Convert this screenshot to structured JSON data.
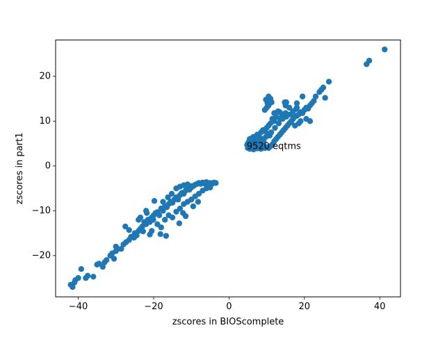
{
  "chart_data": {
    "type": "scatter",
    "title": "",
    "xlabel": "zscores in BIOScomplete",
    "ylabel": "zscores in part1",
    "xlim": [
      -46,
      45.5
    ],
    "ylim": [
      -29.2,
      28.1
    ],
    "xticks": [
      -40,
      -20,
      0,
      20,
      40
    ],
    "yticks": [
      -20,
      -10,
      0,
      10,
      20
    ],
    "xtick_labels": [
      "−40",
      "−20",
      "0",
      "20",
      "40"
    ],
    "ytick_labels": [
      "−20",
      "−10",
      "0",
      "10",
      "20"
    ],
    "grid": false,
    "legend": "none",
    "marker_color": "#1f77b4",
    "annotations": [
      {
        "text": "9520 eqtms",
        "x": 4.7,
        "y": 4.3
      }
    ],
    "series": [
      {
        "note_points": "approximate sample of visible point cloud",
        "points": [
          [
            -42,
            -26.5
          ],
          [
            -41.5,
            -27
          ],
          [
            -41,
            -26
          ],
          [
            -40.8,
            -25.5
          ],
          [
            -40,
            -25
          ],
          [
            -39.2,
            -23
          ],
          [
            -38,
            -25
          ],
          [
            -37.5,
            -24.5
          ],
          [
            -36,
            -24.7
          ],
          [
            -35,
            -22
          ],
          [
            -34.5,
            -21.8
          ],
          [
            -33.5,
            -22.5
          ],
          [
            -33,
            -21.5
          ],
          [
            -32.5,
            -21
          ],
          [
            -31.5,
            -20
          ],
          [
            -31,
            -19.5
          ],
          [
            -30.5,
            -20.7
          ],
          [
            -30,
            -19
          ],
          [
            -29.5,
            -18.5
          ],
          [
            -28.6,
            -18.5
          ],
          [
            -28,
            -17.5
          ],
          [
            -27.3,
            -17
          ],
          [
            -26.5,
            -16.5
          ],
          [
            -26,
            -15.8
          ],
          [
            -25.2,
            -16
          ],
          [
            -25,
            -15
          ],
          [
            -24.5,
            -15.5
          ],
          [
            -24,
            -14.5
          ],
          [
            -23.5,
            -14
          ],
          [
            -23,
            -13.5
          ],
          [
            -22.5,
            -12.5
          ],
          [
            -22,
            -13
          ],
          [
            -21.5,
            -12
          ],
          [
            -21,
            -12.5
          ],
          [
            -20.5,
            -11.5
          ],
          [
            -20,
            -11
          ],
          [
            -20.1,
            -12
          ],
          [
            -19.5,
            -10.5
          ],
          [
            -19,
            -10.3
          ],
          [
            -18.5,
            -11
          ],
          [
            -18,
            -9.5
          ],
          [
            -17.5,
            -10
          ],
          [
            -17,
            -9
          ],
          [
            -16.5,
            -9.2
          ],
          [
            -16,
            -8.5
          ],
          [
            -15.5,
            -8
          ],
          [
            -15,
            -8.2
          ],
          [
            -14.5,
            -7.5
          ],
          [
            -14,
            -7
          ],
          [
            -13.5,
            -7.5
          ],
          [
            -13,
            -6.5
          ],
          [
            -12.5,
            -6
          ],
          [
            -12,
            -6.2
          ],
          [
            -11.5,
            -5.5
          ],
          [
            -11,
            -5
          ],
          [
            -10.5,
            -5.3
          ],
          [
            -10,
            -4.8
          ],
          [
            -9.5,
            -4.5
          ],
          [
            -9,
            -4.2
          ],
          [
            -8.5,
            -4
          ],
          [
            -8,
            -3.8
          ],
          [
            -7.5,
            -4
          ],
          [
            -7,
            -3.7
          ],
          [
            -6.5,
            -3.9
          ],
          [
            -6,
            -3.6
          ],
          [
            -5.5,
            -4.1
          ],
          [
            -5,
            -3.8
          ],
          [
            -4.5,
            -4
          ],
          [
            -4,
            -3.7
          ],
          [
            -3.5,
            -3.8
          ],
          [
            -30,
            -18
          ],
          [
            -27.5,
            -13.5
          ],
          [
            -24,
            -12
          ],
          [
            -22.8,
            -14.6
          ],
          [
            -21.8,
            -10.5
          ],
          [
            -20.5,
            -14.5
          ],
          [
            -19,
            -13
          ],
          [
            -17,
            -12
          ],
          [
            -16,
            -11
          ],
          [
            -15,
            -11.5
          ],
          [
            -14,
            -10.2
          ],
          [
            -13,
            -9.5
          ],
          [
            -12,
            -8.5
          ],
          [
            -11,
            -8
          ],
          [
            -10,
            -7.5
          ],
          [
            -9,
            -6.8
          ],
          [
            -8,
            -6.2
          ],
          [
            -7,
            -5.5
          ],
          [
            -6,
            -5
          ],
          [
            -5,
            -4.8
          ],
          [
            -17.5,
            -8
          ],
          [
            -16.2,
            -7
          ],
          [
            -15.2,
            -6.2
          ],
          [
            -14,
            -5
          ],
          [
            -13,
            -4.6
          ],
          [
            -12,
            -4.3
          ],
          [
            -11,
            -4.1
          ],
          [
            -10,
            -4.5
          ],
          [
            -22,
            -10
          ],
          [
            -18.2,
            -15.2
          ],
          [
            -16.7,
            -15.6
          ],
          [
            -19.8,
            -7.8
          ],
          [
            -26.5,
            -14.3
          ],
          [
            -23.5,
            -11.5
          ],
          [
            -12.2,
            -10.5
          ],
          [
            -9.5,
            -9
          ],
          [
            -8.2,
            -8
          ],
          [
            -13.2,
            -12.8
          ],
          [
            -11.5,
            -11.2
          ],
          [
            -18,
            -13.7
          ],
          [
            -21,
            -15.3
          ],
          [
            5,
            4
          ],
          [
            5.5,
            3.8
          ],
          [
            6,
            4.2
          ],
          [
            6.5,
            3.7
          ],
          [
            7,
            4.1
          ],
          [
            7.5,
            3.9
          ],
          [
            8,
            4.3
          ],
          [
            8.5,
            3.8
          ],
          [
            9,
            4.5
          ],
          [
            9.5,
            4
          ],
          [
            10,
            4.2
          ],
          [
            10.5,
            4
          ],
          [
            11,
            4.4
          ],
          [
            11.5,
            4.8
          ],
          [
            12,
            5.5
          ],
          [
            12.5,
            6
          ],
          [
            13,
            6.5
          ],
          [
            13.5,
            7
          ],
          [
            14,
            7.5
          ],
          [
            14.5,
            8
          ],
          [
            15,
            8.5
          ],
          [
            15.5,
            9
          ],
          [
            16,
            9.5
          ],
          [
            16.5,
            9.8
          ],
          [
            17,
            10.5
          ],
          [
            17.5,
            11
          ],
          [
            18,
            11.2
          ],
          [
            18.5,
            11.5
          ],
          [
            19,
            12
          ],
          [
            19.5,
            11.8
          ],
          [
            20,
            12.5
          ],
          [
            20.5,
            13
          ],
          [
            21,
            12.8
          ],
          [
            21.5,
            13.5
          ],
          [
            22,
            14
          ],
          [
            5,
            5
          ],
          [
            5.5,
            6
          ],
          [
            6,
            5.5
          ],
          [
            6.5,
            6.5
          ],
          [
            7,
            5.8
          ],
          [
            7.5,
            7
          ],
          [
            8,
            6.5
          ],
          [
            8.5,
            7.5
          ],
          [
            9,
            8
          ],
          [
            9.5,
            7.8
          ],
          [
            10,
            8.5
          ],
          [
            10.5,
            9
          ],
          [
            11,
            9.5
          ],
          [
            11.5,
            10.5
          ],
          [
            12,
            10
          ],
          [
            12.5,
            11
          ],
          [
            13,
            12.2
          ],
          [
            13.5,
            12
          ],
          [
            14,
            11.5
          ],
          [
            15,
            13.5
          ],
          [
            16,
            13
          ],
          [
            17,
            12.2
          ],
          [
            18,
            13
          ],
          [
            10.5,
            13.5
          ],
          [
            10.2,
            14
          ],
          [
            10,
            13
          ],
          [
            9.5,
            12.5
          ],
          [
            9.8,
            14.8
          ],
          [
            11,
            15
          ],
          [
            10.5,
            15.5
          ],
          [
            11.3,
            14.2
          ],
          [
            19.5,
            15.5
          ],
          [
            18,
            14
          ],
          [
            17.8,
            12.7
          ],
          [
            19,
            10
          ],
          [
            20.5,
            10.5
          ],
          [
            21.5,
            10
          ],
          [
            22.5,
            14.5
          ],
          [
            23,
            15.5
          ],
          [
            24,
            16.5
          ],
          [
            24.5,
            17
          ],
          [
            25,
            17.5
          ],
          [
            25.5,
            15.2
          ],
          [
            26.5,
            18.8
          ],
          [
            4.8,
            4.7
          ],
          [
            5.2,
            5.3
          ],
          [
            5.8,
            6.1
          ],
          [
            6.2,
            4.6
          ],
          [
            6.8,
            5.2
          ],
          [
            7.2,
            4.8
          ],
          [
            7.8,
            5.6
          ],
          [
            8.2,
            5.1
          ],
          [
            8.8,
            6
          ],
          [
            9.2,
            5.5
          ],
          [
            9.8,
            6.5
          ],
          [
            10.2,
            7.2
          ],
          [
            10.8,
            6.8
          ],
          [
            11.2,
            7.5
          ],
          [
            12.2,
            8.5
          ],
          [
            13.2,
            9.5
          ],
          [
            14.2,
            10.5
          ],
          [
            15.2,
            11
          ],
          [
            16.2,
            11.5
          ],
          [
            12,
            11.8
          ],
          [
            13.5,
            10.5
          ],
          [
            15,
            11.8
          ],
          [
            16.5,
            10
          ],
          [
            17.5,
            9
          ],
          [
            18.5,
            9.5
          ],
          [
            14.8,
            14.2
          ],
          [
            15.2,
            14.2
          ],
          [
            36.5,
            22.7
          ],
          [
            37.2,
            23.5
          ],
          [
            41.3,
            26
          ]
        ]
      }
    ]
  }
}
